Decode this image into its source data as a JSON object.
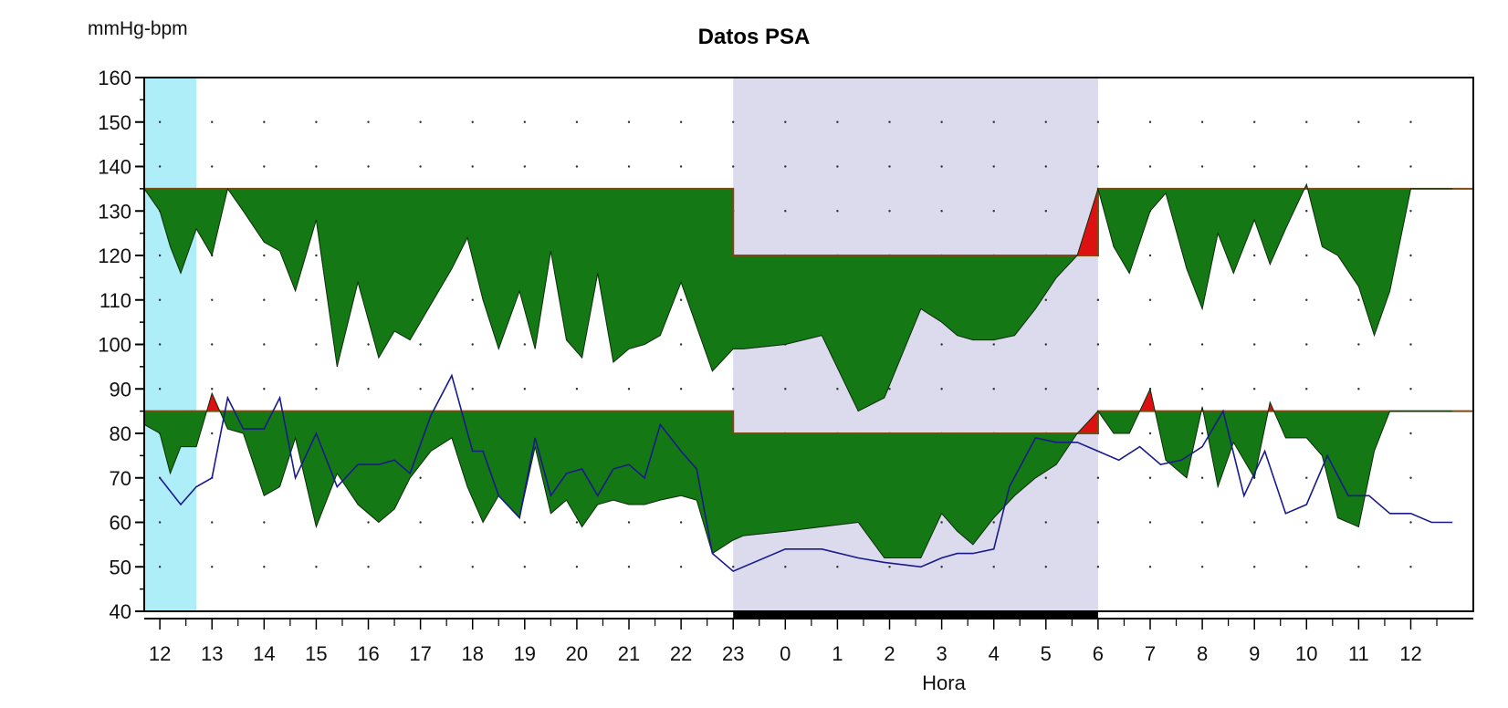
{
  "chart_data": {
    "type": "area",
    "title": "Datos PSA",
    "ylabel": "mmHg-bpm",
    "xlabel": "Hora",
    "ylim": [
      40,
      160
    ],
    "yticks": [
      40,
      50,
      60,
      70,
      80,
      90,
      100,
      110,
      120,
      130,
      140,
      150,
      160
    ],
    "xlim": [
      11.7,
      37.2
    ],
    "xtick_values": [
      12,
      13,
      14,
      15,
      16,
      17,
      18,
      19,
      20,
      21,
      22,
      23,
      24,
      25,
      26,
      27,
      28,
      29,
      30,
      31,
      32,
      33,
      34,
      35,
      36
    ],
    "xtick_labels": [
      "12",
      "13",
      "14",
      "15",
      "16",
      "17",
      "18",
      "19",
      "20",
      "21",
      "22",
      "23",
      "0",
      "1",
      "2",
      "3",
      "4",
      "5",
      "6",
      "7",
      "8",
      "9",
      "10",
      "11",
      "12"
    ],
    "grid": true,
    "colors": {
      "fill_below": "#147814",
      "fill_above": "#dd1111",
      "threshold": "#7a4a10",
      "heart_rate": "#1a1a8c",
      "cyan_band": "#aeeef8",
      "night_band": "#dcdaed",
      "night_bar": "#000000"
    },
    "bands": [
      {
        "kind": "cyan",
        "x_start": 11.7,
        "x_end": 12.7
      },
      {
        "kind": "night",
        "x_start": 23.0,
        "x_end": 30.0
      }
    ],
    "series": [
      {
        "role": "systolic",
        "threshold": [
          [
            11.7,
            135
          ],
          [
            23.0,
            135
          ],
          [
            23.0,
            120
          ],
          [
            30.0,
            120
          ],
          [
            30.0,
            135
          ],
          [
            37.2,
            135
          ]
        ],
        "x": [
          11.7,
          12.0,
          12.2,
          12.4,
          12.7,
          13.0,
          13.3,
          13.6,
          14.0,
          14.3,
          14.6,
          15.0,
          15.4,
          15.8,
          16.2,
          16.5,
          16.8,
          17.2,
          17.6,
          17.9,
          18.2,
          18.5,
          18.9,
          19.2,
          19.5,
          19.8,
          20.1,
          20.4,
          20.7,
          21.0,
          21.3,
          21.6,
          22.0,
          22.3,
          22.6,
          23.0,
          23.2,
          24.0,
          24.7,
          25.4,
          25.9,
          26.6,
          27.0,
          27.3,
          27.6,
          28.0,
          28.4,
          28.8,
          29.2,
          29.6,
          30.0,
          30.3,
          30.6,
          31.0,
          31.3,
          31.7,
          32.0,
          32.3,
          32.6,
          33.0,
          33.3,
          33.6,
          34.0,
          34.3,
          34.6,
          35.0,
          35.3,
          35.6,
          36.0,
          36.3,
          36.5,
          36.8
        ],
        "y": [
          135,
          130,
          122,
          116,
          126,
          120,
          135,
          130,
          123,
          121,
          112,
          128,
          95,
          114,
          97,
          103,
          101,
          109,
          117,
          124,
          110,
          99,
          112,
          99,
          121,
          101,
          97,
          116,
          96,
          99,
          100,
          102,
          114,
          104,
          94,
          99,
          99,
          100,
          102,
          85,
          88,
          108,
          105,
          102,
          101,
          101,
          102,
          108,
          115,
          120,
          135,
          122,
          116,
          130,
          134,
          117,
          108,
          125,
          116,
          128,
          118,
          126,
          136,
          122,
          120,
          113,
          102,
          112,
          135,
          135,
          135,
          135
        ]
      },
      {
        "role": "diastolic",
        "threshold": [
          [
            11.7,
            85
          ],
          [
            23.0,
            85
          ],
          [
            23.0,
            80
          ],
          [
            30.0,
            80
          ],
          [
            30.0,
            85
          ],
          [
            37.2,
            85
          ]
        ],
        "x": [
          11.7,
          12.0,
          12.2,
          12.4,
          12.7,
          13.0,
          13.3,
          13.6,
          14.0,
          14.3,
          14.6,
          15.0,
          15.4,
          15.8,
          16.2,
          16.5,
          16.8,
          17.2,
          17.6,
          17.9,
          18.2,
          18.5,
          18.9,
          19.2,
          19.5,
          19.8,
          20.1,
          20.4,
          20.7,
          21.0,
          21.3,
          21.6,
          22.0,
          22.3,
          22.6,
          23.0,
          23.2,
          24.0,
          24.7,
          25.4,
          25.9,
          26.6,
          27.0,
          27.3,
          27.6,
          28.0,
          28.4,
          28.8,
          29.2,
          29.6,
          30.0,
          30.3,
          30.6,
          31.0,
          31.3,
          31.7,
          32.0,
          32.3,
          32.6,
          33.0,
          33.3,
          33.6,
          34.0,
          34.3,
          34.6,
          35.0,
          35.3,
          35.6,
          36.0,
          36.3,
          36.5,
          36.8
        ],
        "y": [
          82,
          80,
          71,
          77,
          77,
          89,
          81,
          80,
          66,
          68,
          79,
          59,
          71,
          64,
          60,
          63,
          70,
          76,
          79,
          68,
          60,
          66,
          61,
          77,
          62,
          65,
          59,
          64,
          65,
          64,
          64,
          65,
          66,
          65,
          53,
          56,
          57,
          58,
          59,
          60,
          52,
          52,
          62,
          58,
          55,
          61,
          66,
          70,
          73,
          80,
          85,
          80,
          80,
          90,
          74,
          70,
          86,
          68,
          78,
          70,
          87,
          79,
          79,
          75,
          61,
          59,
          76,
          85,
          85,
          85,
          85,
          85
        ]
      },
      {
        "role": "heart_rate",
        "x": [
          12.0,
          12.4,
          12.7,
          13.0,
          13.3,
          13.6,
          14.0,
          14.3,
          14.6,
          15.0,
          15.4,
          15.8,
          16.2,
          16.5,
          16.8,
          17.2,
          17.6,
          18.0,
          18.2,
          18.5,
          18.9,
          19.2,
          19.5,
          19.8,
          20.1,
          20.4,
          20.7,
          21.0,
          21.3,
          21.6,
          22.0,
          22.3,
          22.6,
          23.0,
          24.0,
          24.7,
          25.4,
          25.9,
          26.6,
          27.0,
          27.3,
          27.6,
          28.0,
          28.3,
          28.8,
          29.2,
          29.6,
          30.0,
          30.4,
          30.8,
          31.2,
          31.6,
          32.0,
          32.4,
          32.8,
          33.2,
          33.6,
          34.0,
          34.4,
          34.8,
          35.2,
          35.6,
          36.0,
          36.4,
          36.8
        ],
        "y": [
          70,
          64,
          68,
          70,
          88,
          81,
          81,
          88,
          70,
          80,
          68,
          73,
          73,
          74,
          71,
          84,
          93,
          76,
          76,
          66,
          61,
          79,
          66,
          71,
          72,
          66,
          72,
          73,
          70,
          82,
          76,
          72,
          53,
          49,
          54,
          54,
          52,
          51,
          50,
          52,
          53,
          53,
          54,
          68,
          79,
          78,
          78,
          76,
          74,
          77,
          73,
          74,
          77,
          85,
          66,
          76,
          62,
          64,
          75,
          66,
          66,
          62,
          62,
          60,
          60
        ]
      }
    ]
  }
}
